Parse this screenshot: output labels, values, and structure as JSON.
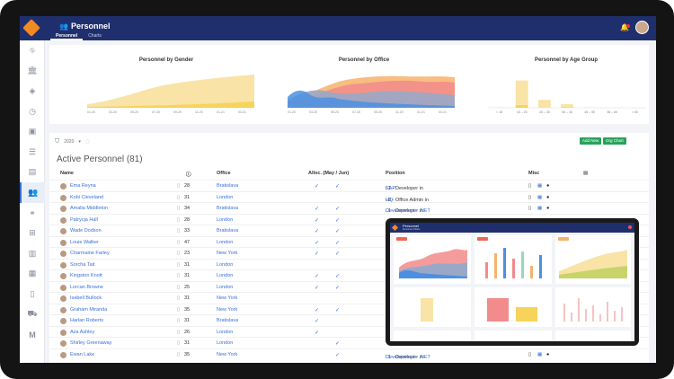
{
  "app": {
    "title": "Personnel",
    "tabs": [
      {
        "label": "Personnel",
        "active": true
      },
      {
        "label": "Charts",
        "active": false
      }
    ]
  },
  "sidebar": {
    "items": [
      {
        "icon": "network-icon"
      },
      {
        "icon": "bank-icon"
      },
      {
        "icon": "layers-icon"
      },
      {
        "icon": "clock-icon"
      },
      {
        "icon": "calendar-icon"
      },
      {
        "icon": "list-icon"
      },
      {
        "icon": "wallet-icon"
      },
      {
        "icon": "users-icon",
        "active": true
      },
      {
        "icon": "handshake-icon"
      },
      {
        "icon": "org-icon"
      },
      {
        "icon": "document-icon"
      },
      {
        "icon": "folder-icon"
      },
      {
        "icon": "building-icon"
      },
      {
        "icon": "car-icon"
      },
      {
        "icon": "m-logo-icon"
      }
    ]
  },
  "charts": {
    "gender": {
      "title": "Personnel by Gender"
    },
    "office": {
      "title": "Personnel by Office"
    },
    "age": {
      "title": "Personnel by Age Group",
      "ticks": [
        "< 18",
        "18 – 25",
        "26 – 35",
        "36 – 45",
        "46 – 55",
        "56 – 65",
        "> 65"
      ]
    }
  },
  "chart_data": [
    {
      "type": "area",
      "title": "Personnel by Gender",
      "stacked": true,
      "colors": [
        "#f6d35a",
        "#f9e3a6"
      ]
    },
    {
      "type": "area",
      "title": "Personnel by Office",
      "stacked": true,
      "colors": [
        "#4d8fe0",
        "#f28b8b",
        "#f6b26b",
        "#9aa8c7"
      ]
    },
    {
      "type": "bar",
      "title": "Personnel by Age Group",
      "categories": [
        "< 18",
        "18 – 25",
        "26 – 35",
        "36 – 45",
        "46 – 55",
        "56 – 65",
        "> 65"
      ],
      "series": [
        {
          "values": [
            0,
            4,
            0,
            1,
            0,
            0,
            0
          ]
        },
        {
          "values": [
            0.5,
            34,
            11,
            4,
            0.5,
            0,
            0
          ]
        }
      ],
      "colors": [
        "#f6d35a",
        "#f9e3a6"
      ],
      "ylim": [
        0,
        50
      ]
    }
  ],
  "toolbar": {
    "year": "2020",
    "add_new": "Add New",
    "org_chart": "Org Chart"
  },
  "table": {
    "title": "Active Personnel (81)",
    "headers": {
      "name": "Name",
      "age": "",
      "office": "Office",
      "alloc": "Alloc. (May / Jun)",
      "position": "Position",
      "misc": "Misc"
    },
    "rows": [
      {
        "name": "Ema Reyna",
        "age": "28",
        "office": "Bratislava",
        "may": true,
        "jun": true,
        "pos_prefix": "L1 - Developer in ",
        "pos_link": "SAP",
        "misc": true
      },
      {
        "name": "Kobi Cleveland",
        "age": "31",
        "office": "London",
        "may": false,
        "jun": false,
        "pos_prefix": "L0 - Office Admin in ",
        "pos_link": "HQ",
        "misc": true
      },
      {
        "name": "Amalia Middleton",
        "age": "34",
        "office": "Bratislava",
        "may": true,
        "jun": true,
        "pos_prefix": "L1 - Developer in ",
        "pos_link": "Development - .NET",
        "misc": true
      },
      {
        "name": "Patrycja Hall",
        "age": "28",
        "office": "London",
        "may": true,
        "jun": true,
        "pos_prefix": "",
        "pos_link": "",
        "misc": false
      },
      {
        "name": "Wade Dodson",
        "age": "33",
        "office": "Bratislava",
        "may": true,
        "jun": true,
        "pos_prefix": "",
        "pos_link": "",
        "misc": false
      },
      {
        "name": "Louie Walker",
        "age": "47",
        "office": "London",
        "may": true,
        "jun": true,
        "pos_prefix": "",
        "pos_link": "",
        "misc": false
      },
      {
        "name": "Charmaine Farley",
        "age": "23",
        "office": "New York",
        "may": true,
        "jun": true,
        "pos_prefix": "",
        "pos_link": "",
        "misc": false
      },
      {
        "name": "Sorcha Tait",
        "age": "31",
        "office": "London",
        "may": false,
        "jun": false,
        "pos_prefix": "",
        "pos_link": "",
        "misc": false
      },
      {
        "name": "Kingston Knott",
        "age": "31",
        "office": "London",
        "may": true,
        "jun": true,
        "pos_prefix": "",
        "pos_link": "",
        "misc": false
      },
      {
        "name": "Lorcan Browne",
        "age": "25",
        "office": "London",
        "may": true,
        "jun": true,
        "pos_prefix": "",
        "pos_link": "",
        "misc": false
      },
      {
        "name": "Isabell Bullock",
        "age": "31",
        "office": "New York",
        "may": false,
        "jun": false,
        "pos_prefix": "",
        "pos_link": "",
        "misc": false
      },
      {
        "name": "Graham Miranda",
        "age": "35",
        "office": "New York",
        "may": true,
        "jun": true,
        "pos_prefix": "",
        "pos_link": "",
        "misc": false
      },
      {
        "name": "Harlan Roberts",
        "age": "31",
        "office": "Bratislava",
        "may": true,
        "jun": false,
        "pos_prefix": "",
        "pos_link": "",
        "misc": false
      },
      {
        "name": "Aza Ashley",
        "age": "26",
        "office": "London",
        "may": true,
        "jun": false,
        "pos_prefix": "",
        "pos_link": "",
        "misc": false
      },
      {
        "name": "Shirley Greenaway",
        "age": "31",
        "office": "London",
        "may": false,
        "jun": true,
        "pos_prefix": "",
        "pos_link": "",
        "misc": false
      },
      {
        "name": "Ewan Lake",
        "age": "35",
        "office": "New York",
        "may": false,
        "jun": true,
        "pos_prefix": "L1 - Developer in ",
        "pos_link": "Development - .NET",
        "misc": true
      }
    ]
  },
  "overlay": {
    "title": "Personnel",
    "sub": "Personnel   Charts"
  }
}
